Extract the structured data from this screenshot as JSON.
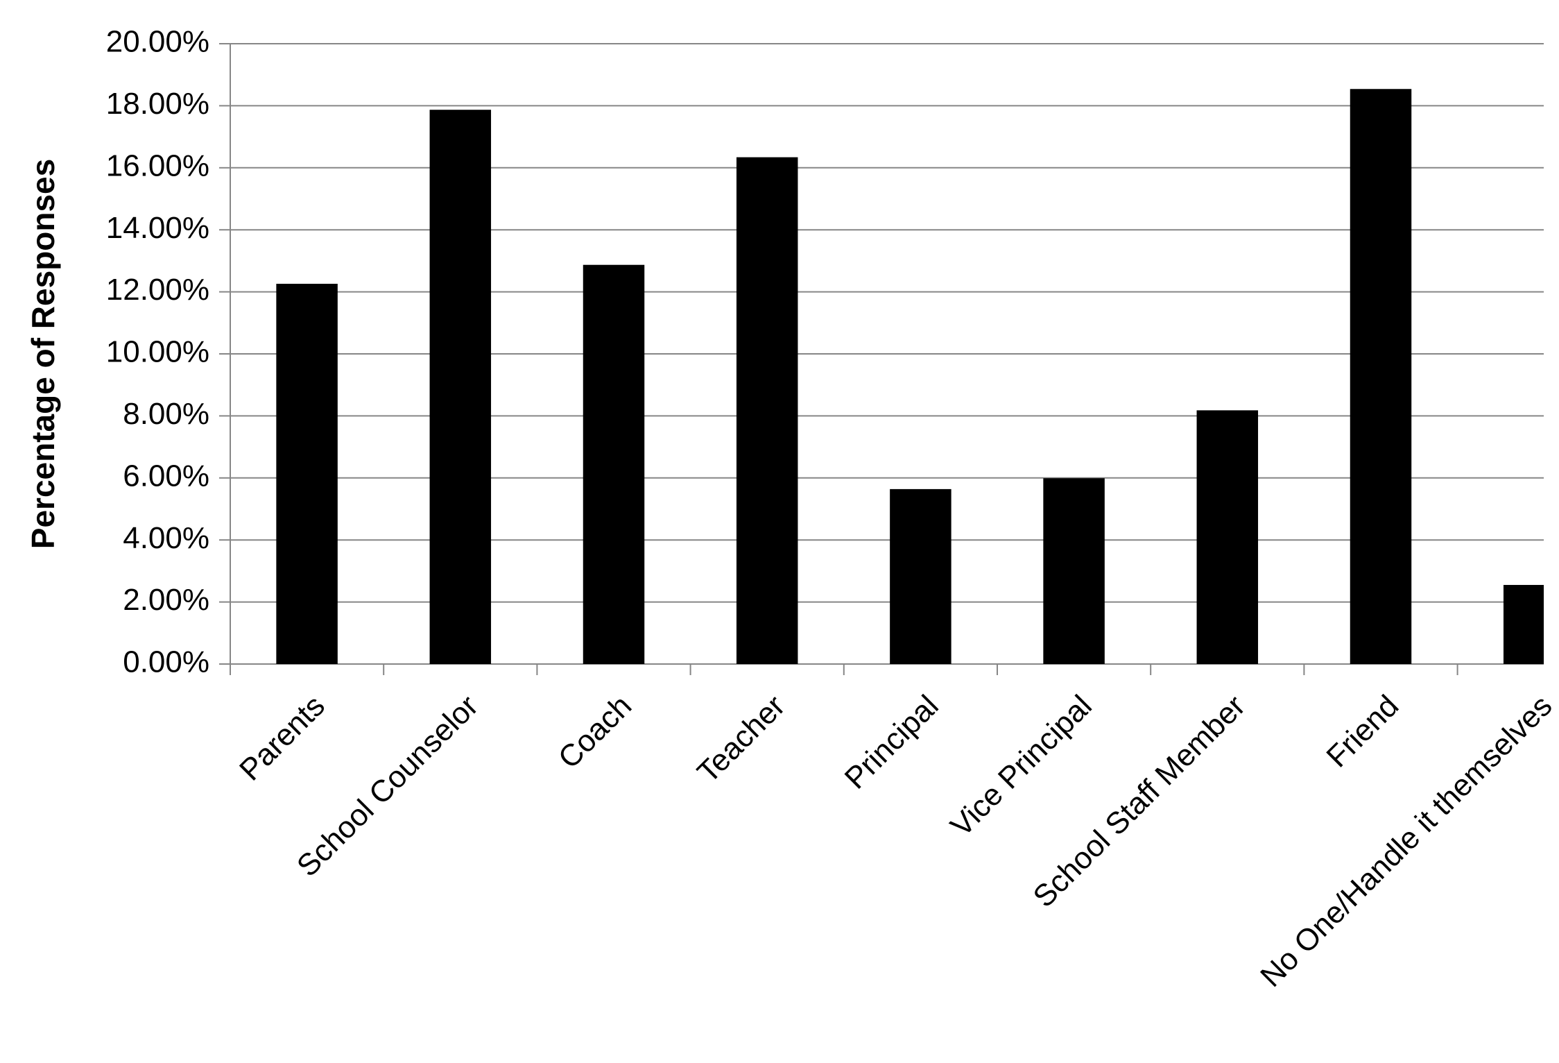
{
  "chart_data": {
    "type": "bar",
    "y_label": "Percentage of Responses",
    "categories": [
      "Parents",
      "School Counselor",
      "Coach",
      "Teacher",
      "Principal",
      "Vice Principal",
      "School Staff Member",
      "Friend",
      "No One/Handle it themselves"
    ],
    "values": [
      12.26,
      17.87,
      12.87,
      16.34,
      5.64,
      5.99,
      8.18,
      18.54,
      2.55
    ],
    "color": "#000000",
    "ylim": [
      0,
      20
    ],
    "yticks": [
      {
        "value": 0,
        "label": "0.00%"
      },
      {
        "value": 2,
        "label": "2.00%"
      },
      {
        "value": 4,
        "label": "4.00%"
      },
      {
        "value": 6,
        "label": "6.00%"
      },
      {
        "value": 8,
        "label": "8.00%"
      },
      {
        "value": 10,
        "label": "10.00%"
      },
      {
        "value": 12,
        "label": "12.00%"
      },
      {
        "value": 14,
        "label": "14.00%"
      },
      {
        "value": 16,
        "label": "16.00%"
      },
      {
        "value": 18,
        "label": "18.00%"
      },
      {
        "value": 20,
        "label": "20.00%"
      }
    ],
    "grid": true
  }
}
